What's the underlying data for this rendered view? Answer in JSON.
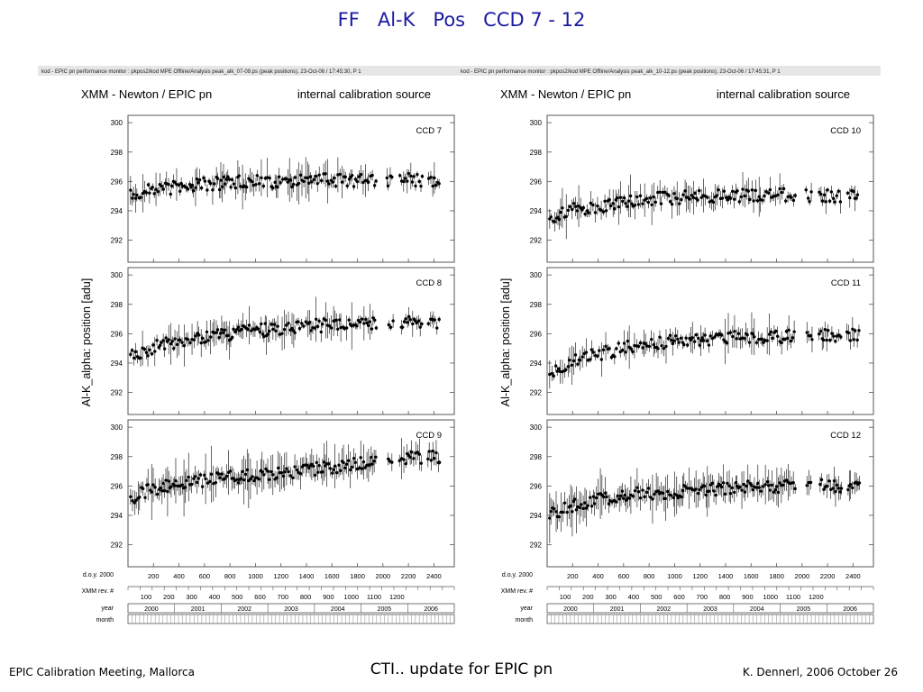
{
  "slide": {
    "title": "FF   Al-K   Pos   CCD 7 - 12",
    "footer_left": "EPIC Calibration Meeting, Mallorca",
    "footer_center": "CTI.. update for EPIC pn",
    "footer_right": "K. Dennerl, 2006 October 26"
  },
  "colors": {
    "title": "#1a1aa0",
    "data": "#000000",
    "frame": "#555555"
  },
  "figures": [
    {
      "header_line": "kod - EPIC pn performance monitor : pkpos2/kod     MPE   Offline/Analysis   peak_alk_07-09.ps (peak positions), 23-Oct-06 / 17:45:30, P   1",
      "title_left": "XMM - Newton  /  EPIC pn",
      "title_right": "internal calibration source",
      "ylabel": "Al-K_alpha:  position  [adu]",
      "x_rows": {
        "doy_label": "d.o.y. 2000",
        "doy_ticks": [
          "200",
          "400",
          "600",
          "800",
          "1000",
          "1200",
          "1400",
          "1600",
          "1800",
          "2000",
          "2200",
          "2400"
        ],
        "rev_label": "XMM rev. #",
        "rev_ticks": [
          "100",
          "200",
          "300",
          "400",
          "500",
          "600",
          "700",
          "800",
          "900",
          "1000",
          "1100",
          "1200"
        ],
        "year_label": "year",
        "years": [
          "2000",
          "2001",
          "2002",
          "2003",
          "2004",
          "2005",
          "2006"
        ],
        "month_label": "month"
      }
    },
    {
      "header_line": "kod - EPIC pn performance monitor : pkpos2/kod     MPE   Offline/Analysis   peak_alk_10-12.ps (peak positions), 23-Oct-06 / 17:45:31, P   1",
      "title_left": "XMM - Newton  /  EPIC pn",
      "title_right": "internal calibration source",
      "ylabel": "Al-K_alpha:  position  [adu]",
      "x_rows": {
        "doy_label": "d.o.y. 2000",
        "doy_ticks": [
          "200",
          "400",
          "600",
          "800",
          "1000",
          "1200",
          "1400",
          "1600",
          "1800",
          "2000",
          "2200",
          "2400"
        ],
        "rev_label": "XMM rev. #",
        "rev_ticks": [
          "100",
          "200",
          "300",
          "400",
          "500",
          "600",
          "700",
          "800",
          "900",
          "1000",
          "1100",
          "1200"
        ],
        "year_label": "year",
        "years": [
          "2000",
          "2001",
          "2002",
          "2003",
          "2004",
          "2005",
          "2006"
        ],
        "month_label": "month"
      }
    }
  ],
  "chart_data": [
    {
      "type": "scatter",
      "panel": "CCD 7",
      "x_label": "d.o.y. 2000",
      "xlim": [
        0,
        2560
      ],
      "ylim": [
        290.5,
        300.5
      ],
      "y_ticks": [
        292,
        294,
        296,
        298,
        300
      ],
      "trend_x": [
        50,
        200,
        400,
        600,
        800,
        1000,
        1200,
        1400,
        1600,
        1800,
        2000,
        2200,
        2450
      ],
      "trend_y": [
        295.2,
        295.4,
        295.6,
        295.8,
        295.9,
        296.0,
        296.0,
        296.1,
        296.1,
        296.1,
        296.1,
        296.1,
        296.0
      ]
    },
    {
      "type": "scatter",
      "panel": "CCD 8",
      "x_label": "d.o.y. 2000",
      "xlim": [
        0,
        2560
      ],
      "ylim": [
        290.5,
        300.5
      ],
      "y_ticks": [
        292,
        294,
        296,
        298,
        300
      ],
      "trend_x": [
        50,
        200,
        400,
        600,
        800,
        1000,
        1200,
        1400,
        1600,
        1800,
        2000,
        2200,
        2450
      ],
      "trend_y": [
        294.5,
        295.1,
        295.5,
        295.8,
        296.0,
        296.2,
        296.3,
        296.5,
        296.6,
        296.7,
        296.8,
        296.8,
        296.8
      ]
    },
    {
      "type": "scatter",
      "panel": "CCD 9",
      "x_label": "d.o.y. 2000",
      "xlim": [
        0,
        2560
      ],
      "ylim": [
        290.5,
        300.5
      ],
      "y_ticks": [
        292,
        294,
        296,
        298,
        300
      ],
      "trend_x": [
        50,
        200,
        400,
        600,
        800,
        1000,
        1200,
        1400,
        1600,
        1800,
        2000,
        2200,
        2450
      ],
      "trend_y": [
        295.3,
        295.8,
        296.1,
        296.4,
        296.6,
        296.8,
        296.9,
        297.1,
        297.3,
        297.5,
        297.7,
        297.9,
        298.0
      ]
    },
    {
      "type": "scatter",
      "panel": "CCD 10",
      "x_label": "d.o.y. 2000",
      "xlim": [
        0,
        2560
      ],
      "ylim": [
        290.5,
        300.5
      ],
      "y_ticks": [
        292,
        294,
        296,
        298,
        300
      ],
      "trend_x": [
        50,
        200,
        400,
        600,
        800,
        1000,
        1200,
        1400,
        1600,
        1800,
        2000,
        2200,
        2450
      ],
      "trend_y": [
        293.6,
        294.1,
        294.1,
        294.7,
        294.8,
        294.9,
        295.0,
        295.0,
        295.1,
        295.1,
        295.0,
        295.0,
        295.0
      ]
    },
    {
      "type": "scatter",
      "panel": "CCD 11",
      "x_label": "d.o.y. 2000",
      "xlim": [
        0,
        2560
      ],
      "ylim": [
        290.5,
        300.5
      ],
      "y_ticks": [
        292,
        294,
        296,
        298,
        300
      ],
      "trend_x": [
        50,
        200,
        400,
        600,
        800,
        1000,
        1200,
        1400,
        1600,
        1800,
        2000,
        2200,
        2450
      ],
      "trend_y": [
        293.5,
        294.2,
        294.6,
        295.0,
        295.3,
        295.5,
        295.6,
        295.7,
        295.8,
        295.8,
        295.8,
        295.9,
        295.9
      ]
    },
    {
      "type": "scatter",
      "panel": "CCD 12",
      "x_label": "d.o.y. 2000",
      "xlim": [
        0,
        2560
      ],
      "ylim": [
        290.5,
        300.5
      ],
      "y_ticks": [
        292,
        294,
        296,
        298,
        300
      ],
      "trend_x": [
        50,
        200,
        400,
        600,
        800,
        1000,
        1200,
        1400,
        1600,
        1800,
        2000,
        2200,
        2450
      ],
      "trend_y": [
        294.2,
        294.7,
        295.1,
        295.4,
        295.5,
        295.6,
        295.7,
        295.8,
        295.9,
        296.0,
        296.0,
        296.0,
        296.0
      ]
    }
  ]
}
